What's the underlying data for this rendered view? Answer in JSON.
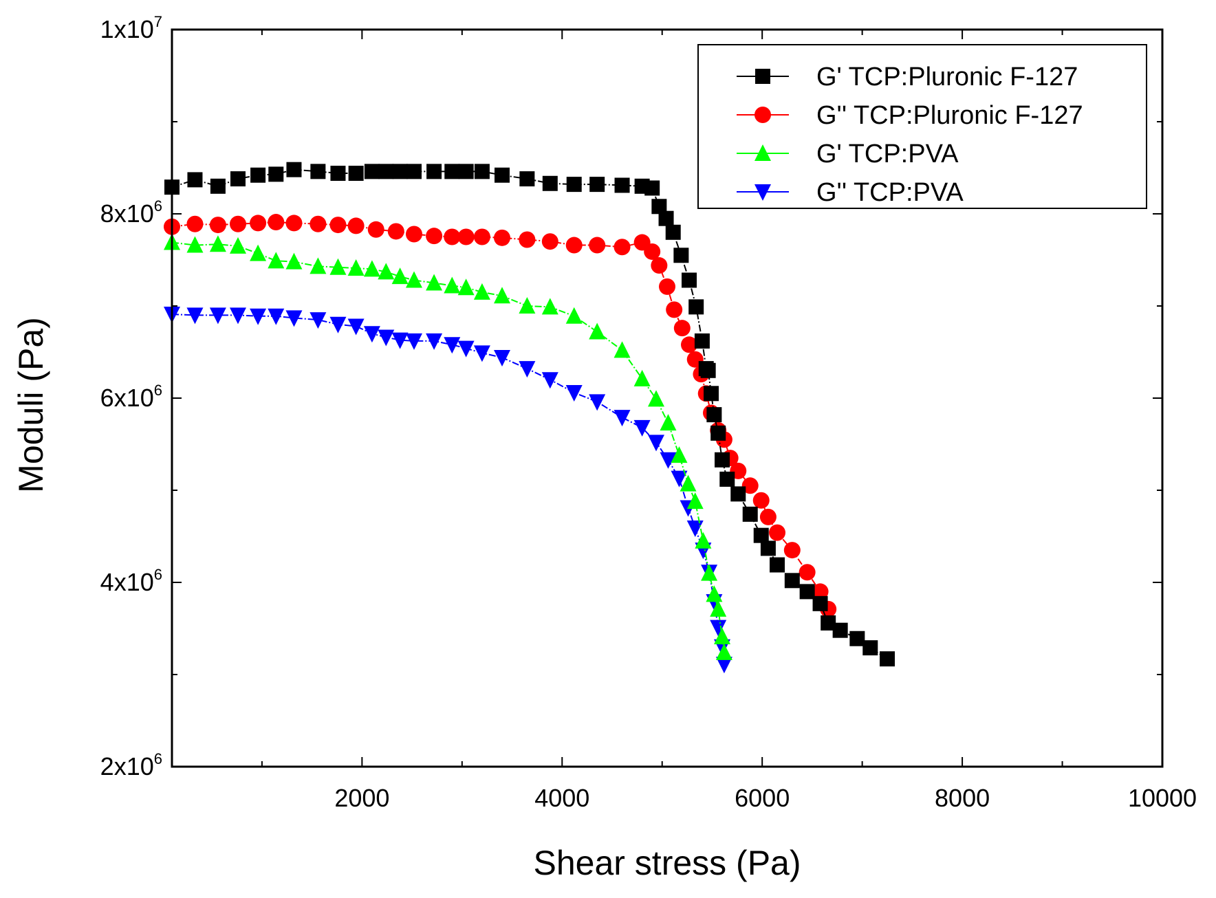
{
  "chart_data": {
    "type": "line",
    "title": "",
    "xlabel": "Shear stress (Pa)",
    "ylabel": "Moduli (Pa)",
    "xlim": [
      100,
      10000
    ],
    "ylim": [
      2000000,
      10000000
    ],
    "x_ticks": [
      {
        "value": 2000,
        "label": "2000"
      },
      {
        "value": 4000,
        "label": "4000"
      },
      {
        "value": 6000,
        "label": "6000"
      },
      {
        "value": 8000,
        "label": "8000"
      },
      {
        "value": 10000,
        "label": "10000"
      }
    ],
    "x_minor_ticks": [
      1000,
      3000,
      5000,
      7000,
      9000
    ],
    "y_ticks": [
      {
        "value": 2000000,
        "base": "2x10",
        "exp": "6"
      },
      {
        "value": 4000000,
        "base": "4x10",
        "exp": "6"
      },
      {
        "value": 6000000,
        "base": "6x10",
        "exp": "6"
      },
      {
        "value": 8000000,
        "base": "8x10",
        "exp": "6"
      },
      {
        "value": 10000000,
        "base": "1x10",
        "exp": "7"
      }
    ],
    "y_minor_ticks": [
      3000000,
      5000000,
      7000000,
      9000000
    ],
    "legend_position": "top-right",
    "series": [
      {
        "name": "G' TCP:Pluronic F-127",
        "color": "#000000",
        "marker": "square",
        "x": [
          100,
          330,
          560,
          760,
          960,
          1140,
          1320,
          1560,
          1760,
          1940,
          2100,
          2240,
          2380,
          2520,
          2720,
          2900,
          3040,
          3200,
          3400,
          3650,
          3880,
          4120,
          4350,
          4600,
          4800,
          4900,
          4970,
          5040,
          5110,
          5190,
          5270,
          5340,
          5400,
          5440,
          5460,
          5490,
          5520,
          5560,
          5600,
          5650,
          5760,
          5880,
          5990,
          6060,
          6150,
          6300,
          6450,
          6580,
          6660,
          6780,
          6950,
          7080,
          7250
        ],
        "y": [
          8290000,
          8370000,
          8300000,
          8380000,
          8420000,
          8430000,
          8480000,
          8460000,
          8440000,
          8440000,
          8460000,
          8460000,
          8460000,
          8460000,
          8460000,
          8460000,
          8460000,
          8460000,
          8420000,
          8380000,
          8330000,
          8320000,
          8320000,
          8310000,
          8300000,
          8280000,
          8080000,
          7950000,
          7800000,
          7550000,
          7280000,
          6990000,
          6620000,
          6320000,
          6300000,
          6050000,
          5820000,
          5620000,
          5330000,
          5120000,
          4960000,
          4740000,
          4510000,
          4370000,
          4190000,
          4020000,
          3900000,
          3770000,
          3560000,
          3480000,
          3390000,
          3290000,
          3170000
        ]
      },
      {
        "name": "G'' TCP:Pluronic F-127",
        "color": "#ff0000",
        "marker": "circle",
        "x": [
          100,
          330,
          560,
          760,
          960,
          1140,
          1320,
          1560,
          1760,
          1940,
          2140,
          2340,
          2520,
          2720,
          2900,
          3040,
          3200,
          3400,
          3650,
          3880,
          4120,
          4350,
          4600,
          4800,
          4900,
          4970,
          5050,
          5120,
          5200,
          5270,
          5330,
          5390,
          5440,
          5490,
          5560,
          5620,
          5680,
          5760,
          5880,
          5990,
          6060,
          6150,
          6300,
          6450,
          6580,
          6660
        ],
        "y": [
          7860000,
          7890000,
          7880000,
          7890000,
          7900000,
          7910000,
          7900000,
          7890000,
          7880000,
          7870000,
          7830000,
          7810000,
          7780000,
          7760000,
          7750000,
          7750000,
          7750000,
          7740000,
          7720000,
          7700000,
          7660000,
          7660000,
          7640000,
          7690000,
          7590000,
          7440000,
          7210000,
          6960000,
          6760000,
          6580000,
          6420000,
          6260000,
          6050000,
          5840000,
          5650000,
          5550000,
          5350000,
          5210000,
          5050000,
          4890000,
          4710000,
          4540000,
          4350000,
          4110000,
          3900000,
          3710000
        ]
      },
      {
        "name": "G' TCP:PVA",
        "color": "#00ff00",
        "marker": "triangle-up",
        "x": [
          100,
          330,
          560,
          760,
          960,
          1140,
          1320,
          1560,
          1760,
          1940,
          2100,
          2240,
          2380,
          2520,
          2720,
          2900,
          3040,
          3200,
          3400,
          3650,
          3880,
          4120,
          4350,
          4600,
          4800,
          4940,
          5060,
          5170,
          5260,
          5330,
          5410,
          5470,
          5520,
          5560,
          5600,
          5620
        ],
        "y": [
          7690000,
          7660000,
          7670000,
          7650000,
          7570000,
          7490000,
          7480000,
          7430000,
          7420000,
          7410000,
          7400000,
          7370000,
          7320000,
          7280000,
          7250000,
          7220000,
          7200000,
          7150000,
          7110000,
          7000000,
          6990000,
          6890000,
          6720000,
          6520000,
          6210000,
          5990000,
          5730000,
          5380000,
          5070000,
          4880000,
          4450000,
          4100000,
          3870000,
          3710000,
          3410000,
          3240000
        ]
      },
      {
        "name": "G'' TCP:PVA",
        "color": "#0000ff",
        "marker": "triangle-down",
        "x": [
          100,
          330,
          560,
          760,
          960,
          1140,
          1320,
          1560,
          1760,
          1940,
          2100,
          2240,
          2380,
          2520,
          2720,
          2900,
          3040,
          3200,
          3400,
          3650,
          3880,
          4120,
          4350,
          4600,
          4800,
          4940,
          5060,
          5170,
          5260,
          5330,
          5410,
          5470,
          5520,
          5560,
          5600,
          5620
        ],
        "y": [
          6910000,
          6900000,
          6900000,
          6900000,
          6890000,
          6890000,
          6870000,
          6850000,
          6800000,
          6780000,
          6700000,
          6660000,
          6630000,
          6620000,
          6620000,
          6580000,
          6540000,
          6490000,
          6440000,
          6320000,
          6200000,
          6060000,
          5960000,
          5790000,
          5680000,
          5520000,
          5330000,
          5130000,
          4810000,
          4590000,
          4350000,
          4110000,
          3790000,
          3510000,
          3300000,
          3110000
        ]
      }
    ]
  }
}
